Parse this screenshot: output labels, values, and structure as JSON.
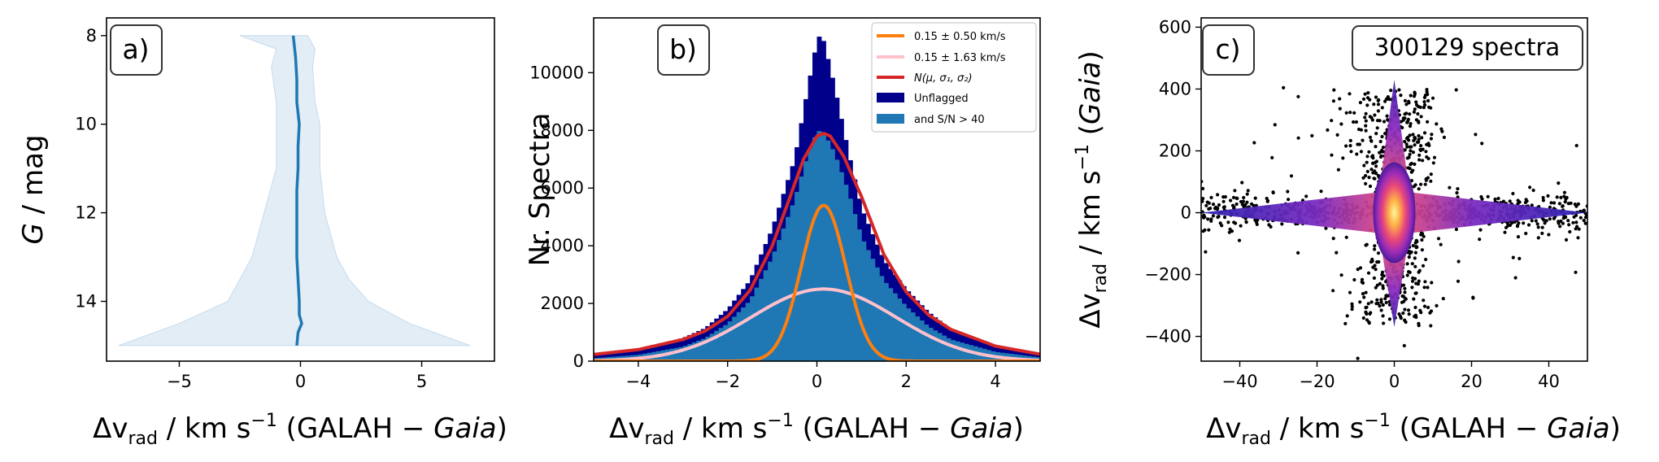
{
  "colors": {
    "median_line": "#1f77b4",
    "band_fill": "#dbe8f4",
    "unflagged": "#00008b",
    "sn40": "#1f77b4",
    "gauss_narrow": "#ff7f0e",
    "gauss_wide": "#ffc0cb",
    "fit_total": "#d62728"
  },
  "chart_data": [
    {
      "panel": "a)",
      "type": "line",
      "xlabel": {
        "prefix": "Δv",
        "sub": "rad",
        "unit": " / km s",
        "sup": "−1",
        "rest": " (GALAH − ",
        "ital": "Gaia",
        "close": ")"
      },
      "ylabel": {
        "ital": "G",
        "rest": " / mag"
      },
      "xlim": [
        -8,
        8
      ],
      "ylim": [
        15.35,
        7.6
      ],
      "xticks": [
        -5,
        0,
        5
      ],
      "yticks": [
        8,
        10,
        12,
        14
      ],
      "median": {
        "g": [
          8.0,
          8.5,
          9.0,
          9.5,
          10.0,
          10.5,
          11.0,
          11.5,
          12.0,
          12.5,
          13.0,
          13.5,
          14.0,
          14.3,
          14.5,
          14.7,
          15.0
        ],
        "dv": [
          -0.3,
          -0.2,
          -0.15,
          -0.15,
          -0.05,
          -0.1,
          -0.1,
          -0.15,
          -0.15,
          -0.15,
          -0.15,
          -0.1,
          -0.05,
          -0.05,
          0.05,
          -0.1,
          -0.15
        ]
      },
      "band": {
        "g": [
          8.0,
          8.3,
          8.7,
          9.5,
          10.0,
          11.0,
          12.0,
          13.0,
          13.5,
          14.0,
          14.5,
          15.0
        ],
        "low": [
          -2.5,
          -1.0,
          -1.2,
          -1.0,
          -1.0,
          -1.0,
          -1.5,
          -2.0,
          -2.5,
          -3.0,
          -5.0,
          -7.5
        ],
        "high": [
          0.3,
          0.6,
          0.5,
          0.6,
          0.8,
          0.8,
          1.0,
          1.5,
          2.0,
          2.8,
          4.5,
          7.0
        ]
      }
    },
    {
      "panel": "b)",
      "type": "bar",
      "xlabel": {
        "prefix": "Δv",
        "sub": "rad",
        "unit": " / km s",
        "sup": "−1",
        "rest": " (GALAH − ",
        "ital": "Gaia",
        "close": ")"
      },
      "ylabel": "Nr. Spectra",
      "xlim": [
        -5,
        5
      ],
      "ylim": [
        0,
        11900
      ],
      "xticks": [
        -4,
        -2,
        0,
        2,
        4
      ],
      "yticks": [
        0,
        2000,
        4000,
        6000,
        8000,
        10000
      ],
      "legend_position": "top-right",
      "legend": [
        {
          "label": "0.15 ± 0.50 km/s",
          "kind": "line",
          "color": "#ff7f0e"
        },
        {
          "label": "0.15 ± 1.63 km/s",
          "kind": "line",
          "color": "#ffc0cb"
        },
        {
          "label": "N(μ, σ₁, σ₂)",
          "kind": "line",
          "color": "#d62728"
        },
        {
          "label": "Unflagged",
          "kind": "patch",
          "color": "#00008b"
        },
        {
          "label": "and S/N > 40",
          "kind": "patch",
          "color": "#1f77b4"
        }
      ],
      "bin_width": 0.1,
      "hist_unflagged": {
        "x": [
          -5,
          -4,
          -3,
          -2.5,
          -2,
          -1.5,
          -1,
          -0.5,
          -0.2,
          0,
          0.1,
          0.2,
          0.4,
          0.7,
          1,
          1.5,
          2,
          2.5,
          3,
          4,
          5
        ],
        "y": [
          230,
          420,
          800,
          1150,
          1800,
          2800,
          4600,
          7000,
          9500,
          11100,
          11400,
          10800,
          9500,
          7300,
          5300,
          3500,
          2500,
          1700,
          1100,
          550,
          280
        ]
      },
      "hist_sn40": {
        "x": [
          -5,
          -4,
          -3,
          -2.5,
          -2,
          -1.5,
          -1,
          -0.5,
          -0.2,
          0,
          0.1,
          0.2,
          0.4,
          0.7,
          1,
          1.5,
          2,
          2.5,
          3,
          4,
          5
        ],
        "y": [
          100,
          220,
          500,
          800,
          1300,
          2100,
          3600,
          5600,
          7200,
          7950,
          8000,
          7800,
          7200,
          5900,
          4300,
          2800,
          1900,
          1200,
          750,
          320,
          130
        ]
      },
      "gauss_narrow": {
        "mu": 0.15,
        "sigma": 0.5,
        "amp": 5400
      },
      "gauss_wide": {
        "mu": 0.15,
        "sigma": 1.63,
        "amp": 2500
      },
      "fit_total": {
        "x": [
          -5,
          -4,
          -3,
          -2.5,
          -2,
          -1.5,
          -1,
          -0.6,
          -0.3,
          0,
          0.15,
          0.3,
          0.6,
          1,
          1.5,
          2,
          2.5,
          3,
          4,
          5
        ],
        "y": [
          230,
          400,
          750,
          1050,
          1550,
          2450,
          4000,
          5700,
          7000,
          7800,
          7900,
          7800,
          7100,
          5700,
          3700,
          2400,
          1600,
          1100,
          520,
          240
        ]
      }
    },
    {
      "panel": "c)",
      "type": "heatmap",
      "annotation": "300129 spectra",
      "xlabel": {
        "prefix": "Δv",
        "sub": "rad",
        "unit": " / km s",
        "sup": "−1",
        "rest": " (GALAH − ",
        "ital": "Gaia",
        "close": ")"
      },
      "ylabel": {
        "prefix": "Δv",
        "sub": "rad",
        "unit": " / km s",
        "sup": "−1",
        "rest": " (",
        "ital": "Gaia",
        "close": ")"
      },
      "xlim": [
        -50,
        50
      ],
      "ylim": [
        -480,
        630
      ],
      "xticks": [
        -40,
        -20,
        0,
        20,
        40
      ],
      "yticks": [
        -400,
        -200,
        0,
        200,
        400,
        600
      ],
      "n_spectra": 300129
    }
  ]
}
